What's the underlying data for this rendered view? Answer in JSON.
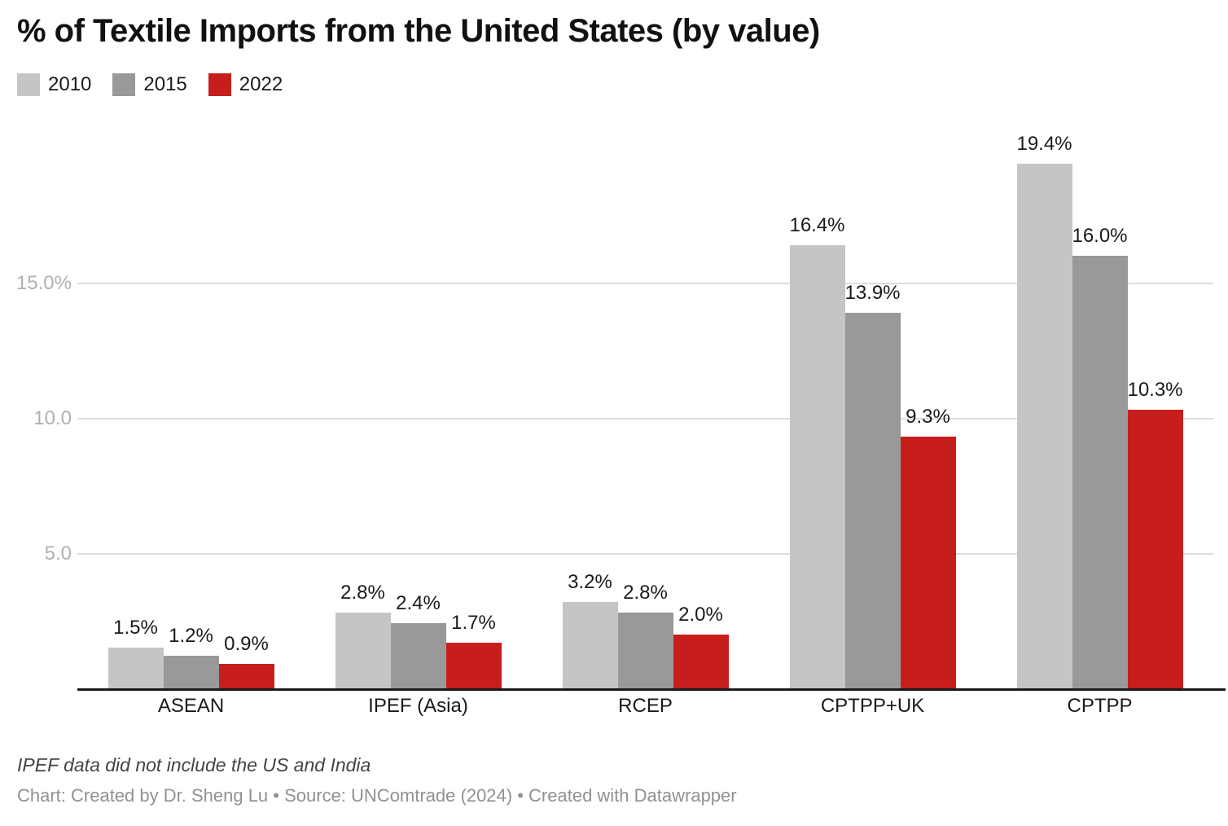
{
  "title": "% of Textile Imports from the United States (by value)",
  "chart_data": {
    "type": "bar",
    "title": "% of Textile Imports from the United States (by value)",
    "categories": [
      "ASEAN",
      "IPEF (Asia)",
      "RCEP",
      "CPTPP+UK",
      "CPTPP"
    ],
    "series": [
      {
        "name": "2010",
        "color": "#c5c5c5",
        "values": [
          1.5,
          2.8,
          3.2,
          16.4,
          19.4
        ]
      },
      {
        "name": "2015",
        "color": "#999999",
        "values": [
          1.2,
          2.4,
          2.8,
          13.9,
          16.0
        ]
      },
      {
        "name": "2022",
        "color": "#c71e1d",
        "values": [
          0.9,
          1.7,
          2.0,
          9.3,
          10.3
        ]
      }
    ],
    "value_labels": [
      [
        "1.5%",
        "1.2%",
        "0.9%"
      ],
      [
        "2.8%",
        "2.4%",
        "1.7%"
      ],
      [
        "3.2%",
        "2.8%",
        "2.0%"
      ],
      [
        "16.4%",
        "13.9%",
        "9.3%"
      ],
      [
        "19.4%",
        "16.0%",
        "10.3%"
      ]
    ],
    "xlabel": "",
    "ylabel": "",
    "ylim": [
      0,
      21
    ],
    "yticks": [
      {
        "value": 5,
        "label": "5.0"
      },
      {
        "value": 10,
        "label": "10.0"
      },
      {
        "value": 15,
        "label": "15.0%"
      }
    ],
    "grid": true,
    "legend_position": "top-left"
  },
  "footnote": "IPEF data did not include the US and India",
  "credit": "Chart: Created by Dr. Sheng Lu • Source: UNComtrade (2024) • Created with Datawrapper"
}
